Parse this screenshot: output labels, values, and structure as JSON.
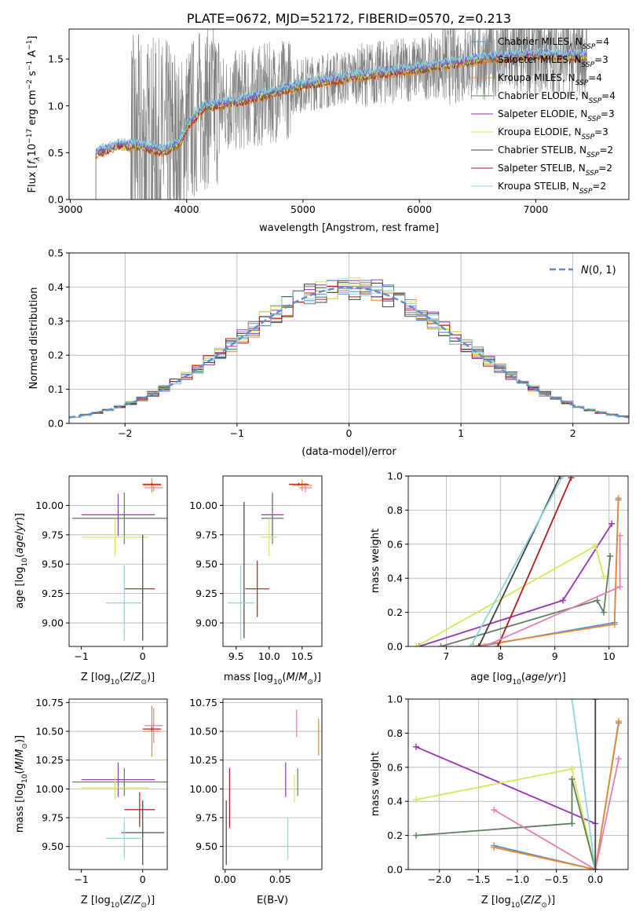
{
  "figure": {
    "title": "PLATE=0672, MJD=52172, FIBERID=0570, z=0.213"
  },
  "colors": {
    "chabrier_miles": "#5b8ed0",
    "salpeter_miles": "#8a8a8a",
    "kroupa_miles": "#e58a2e",
    "chabrier_elodie": "#5e7f5e",
    "salpeter_elodie": "#9932b8",
    "kroupa_elodie": "#d4e85a",
    "chabrier_stelib": "#404040",
    "salpeter_stelib": "#b01c1c",
    "kroupa_stelib": "#8dd6dc",
    "pink": "#e37fb5",
    "data": "#808080",
    "grid": "#b0b0b0"
  },
  "chart_data": [
    {
      "id": "spectrum",
      "type": "line",
      "xlabel": "wavelength [Angstrom, rest frame]",
      "ylabel_parts": [
        "Flux [f",
        "λ",
        "10",
        "−17",
        " erg cm",
        "−2",
        " s",
        "−1",
        " A",
        "−1",
        "]"
      ],
      "xlim": [
        2990,
        7800
      ],
      "ylim": [
        0,
        1.82
      ],
      "xticks": [
        3000,
        4000,
        5000,
        6000,
        7000
      ],
      "yticks": [
        0.0,
        0.5,
        1.0,
        1.5
      ],
      "ytick_labels": [
        "0.0",
        "0.5",
        "1.0",
        "1.5"
      ],
      "legend_placement": "right",
      "legend": [
        {
          "label": "Chabrier MILES, N",
          "sub": "SSP",
          "tail": "=4",
          "color_key": "chabrier_miles"
        },
        {
          "label": "Salpeter MILES, N",
          "sub": "SSP",
          "tail": "=3",
          "color_key": "salpeter_miles"
        },
        {
          "label": "Kroupa MILES, N",
          "sub": "SSP",
          "tail": "=4",
          "color_key": "kroupa_miles"
        },
        {
          "label": "Chabrier ELODIE, N",
          "sub": "SSP",
          "tail": "=4",
          "color_key": "chabrier_elodie"
        },
        {
          "label": "Salpeter ELODIE, N",
          "sub": "SSP",
          "tail": "=3",
          "color_key": "salpeter_elodie"
        },
        {
          "label": "Kroupa ELODIE, N",
          "sub": "SSP",
          "tail": "=3",
          "color_key": "kroupa_elodie"
        },
        {
          "label": "Chabrier STELIB, N",
          "sub": "SSP",
          "tail": "=2",
          "color_key": "chabrier_stelib"
        },
        {
          "label": "Salpeter STELIB, N",
          "sub": "SSP",
          "tail": "=2",
          "color_key": "salpeter_stelib"
        },
        {
          "label": "Kroupa STELIB, N",
          "sub": "SSP",
          "tail": "=2",
          "color_key": "kroupa_stelib"
        }
      ],
      "data_range": [
        3220,
        7440
      ],
      "model_continuum": [
        [
          3220,
          0.5
        ],
        [
          3400,
          0.58
        ],
        [
          3600,
          0.58
        ],
        [
          3800,
          0.52
        ],
        [
          3950,
          0.62
        ],
        [
          4000,
          0.78
        ],
        [
          4150,
          1.0
        ],
        [
          4300,
          1.02
        ],
        [
          4500,
          1.07
        ],
        [
          5000,
          1.23
        ],
        [
          5500,
          1.33
        ],
        [
          6000,
          1.4
        ],
        [
          6500,
          1.5
        ],
        [
          7000,
          1.55
        ],
        [
          7440,
          1.53
        ]
      ]
    },
    {
      "id": "residuals",
      "type": "histogram",
      "xlabel": "(data-model)/error",
      "ylabel": "Normed distribution",
      "xlim": [
        -2.5,
        2.5
      ],
      "ylim": [
        0,
        0.5
      ],
      "xticks": [
        -2,
        -1,
        0,
        1,
        2
      ],
      "xtick_labels": [
        "−2",
        "−1",
        "0",
        "1",
        "2"
      ],
      "yticks": [
        0.0,
        0.1,
        0.2,
        0.3,
        0.4,
        0.5
      ],
      "ytick_labels": [
        "0.0",
        "0.1",
        "0.2",
        "0.3",
        "0.4",
        "0.5"
      ],
      "gaussian_label": "N(0,1)",
      "legend_placement": "top-right",
      "bin_width": 0.1
    },
    {
      "id": "age_vs_Z",
      "type": "errorbar",
      "xlabel": "Z [log10(Z/Z⊙)]",
      "ylabel": "age  [log10(age/yr)]",
      "xlim": [
        -1.2,
        0.4
      ],
      "ylim": [
        8.8,
        10.25
      ],
      "xticks": [
        -1,
        0
      ],
      "xtick_labels": [
        "−1",
        "0"
      ],
      "yticks": [
        9.0,
        9.25,
        9.5,
        9.75,
        10.0
      ],
      "ytick_labels": [
        "9.00",
        "9.25",
        "9.50",
        "9.75",
        "10.00"
      ],
      "points": [
        {
          "c": "salpeter_elodie",
          "x": -0.4,
          "xerr": 0.6,
          "y": 9.92,
          "yerr": 0.18
        },
        {
          "c": "chabrier_elodie",
          "x": -0.3,
          "xerr": 0.85,
          "y": 9.89,
          "yerr": 0.22
        },
        {
          "c": "kroupa_elodie",
          "x": -0.45,
          "xerr": 0.55,
          "y": 9.73,
          "yerr": 0.16
        },
        {
          "c": "chabrier_stelib",
          "x": 0.0,
          "xerr": 0.0,
          "y": 9.3,
          "yerr": 0.45
        },
        {
          "c": "salpeter_stelib",
          "x": -0.05,
          "xerr": 0.25,
          "y": 9.29,
          "yerr": 0.0
        },
        {
          "c": "kroupa_stelib",
          "x": -0.3,
          "xerr": 0.3,
          "y": 9.17,
          "yerr": 0.32
        },
        {
          "c": "kroupa_miles",
          "x": 0.15,
          "xerr": 0.15,
          "y": 10.17,
          "yerr": 0.06
        },
        {
          "c": "pink",
          "x": 0.18,
          "xerr": 0.15,
          "y": 10.15,
          "yerr": 0.03
        },
        {
          "c": "salpeter_stelib",
          "x": 0.15,
          "xerr": 0.15,
          "y": 10.18,
          "yerr": 0.01
        }
      ]
    },
    {
      "id": "age_vs_mass",
      "type": "errorbar",
      "xlabel": "mass [log10(M/M⊙)]",
      "xlim": [
        9.3,
        10.8
      ],
      "ylim": [
        8.8,
        10.25
      ],
      "xticks": [
        9.5,
        10.0,
        10.5
      ],
      "xtick_labels": [
        "9.5",
        "10.0",
        "10.5"
      ],
      "yticks": [
        9.0,
        9.25,
        9.5,
        9.75,
        10.0
      ],
      "ytick_labels": [
        "9.00",
        "9.25",
        "9.50",
        "9.75",
        "10.00"
      ],
      "points": [
        {
          "c": "salpeter_elodie",
          "x": 10.05,
          "xerr": 0.17,
          "y": 9.92,
          "yerr": 0.18
        },
        {
          "c": "chabrier_elodie",
          "x": 10.05,
          "xerr": 0.17,
          "y": 9.89,
          "yerr": 0.22
        },
        {
          "c": "kroupa_elodie",
          "x": 10.0,
          "xerr": 0.13,
          "y": 9.73,
          "yerr": 0.16
        },
        {
          "c": "chabrier_stelib",
          "x": 9.62,
          "xerr": 0.0,
          "y": 9.45,
          "yerr": 0.58
        },
        {
          "c": "salpeter_stelib",
          "x": 9.82,
          "xerr": 0.18,
          "y": 9.29,
          "yerr": 0.24
        },
        {
          "c": "kroupa_stelib",
          "x": 9.57,
          "xerr": 0.2,
          "y": 9.17,
          "yerr": 0.32
        },
        {
          "c": "kroupa_miles",
          "x": 10.5,
          "xerr": 0.15,
          "y": 10.17,
          "yerr": 0.05
        },
        {
          "c": "pink",
          "x": 10.55,
          "xerr": 0.1,
          "y": 10.15,
          "yerr": 0.04
        },
        {
          "c": "salpeter_stelib",
          "x": 10.45,
          "xerr": 0.15,
          "y": 10.18,
          "yerr": 0.01
        }
      ]
    },
    {
      "id": "weight_vs_age",
      "type": "line",
      "xlabel": "age  [log10(age/yr)]",
      "ylabel": "mass weight",
      "xlim": [
        6.3,
        10.35
      ],
      "ylim": [
        0,
        1.0
      ],
      "xticks": [
        7,
        8,
        9,
        10
      ],
      "yticks": [
        0.0,
        0.2,
        0.4,
        0.6,
        0.8,
        1.0
      ],
      "ytick_labels": [
        "0.0",
        "0.2",
        "0.4",
        "0.6",
        "0.8",
        "1.0"
      ],
      "series": [
        {
          "c": "chabrier_miles",
          "x": [
            7.6,
            10.1,
            10.17
          ],
          "y": [
            0.0,
            0.14,
            0.86
          ]
        },
        {
          "c": "kroupa_miles",
          "x": [
            7.5,
            10.1,
            10.17
          ],
          "y": [
            0.0,
            0.13,
            0.87
          ]
        },
        {
          "c": "chabrier_elodie",
          "x": [
            6.9,
            9.78,
            9.9,
            10.02
          ],
          "y": [
            0.0,
            0.27,
            0.2,
            0.53
          ]
        },
        {
          "c": "salpeter_elodie",
          "x": [
            6.5,
            9.15,
            10.05
          ],
          "y": [
            0.0,
            0.27,
            0.72
          ]
        },
        {
          "c": "kroupa_elodie",
          "x": [
            6.45,
            9.75,
            9.9
          ],
          "y": [
            0.0,
            0.59,
            0.41
          ]
        },
        {
          "c": "chabrier_stelib",
          "x": [
            7.6,
            9.1
          ],
          "y": [
            0.0,
            1.0
          ]
        },
        {
          "c": "salpeter_stelib",
          "x": [
            7.95,
            9.3
          ],
          "y": [
            0.0,
            0.99
          ]
        },
        {
          "c": "kroupa_stelib",
          "x": [
            7.45,
            9.15
          ],
          "y": [
            0.0,
            1.0
          ]
        },
        {
          "c": "pink",
          "x": [
            7.7,
            10.2,
            10.2
          ],
          "y": [
            0.0,
            0.35,
            0.65
          ]
        }
      ]
    },
    {
      "id": "mass_vs_Z",
      "type": "errorbar",
      "xlabel": "Z [log10(Z/Z⊙)]",
      "ylabel": "mass [log10(M/M⊙)]",
      "xlim": [
        -1.2,
        0.4
      ],
      "ylim": [
        9.3,
        10.78
      ],
      "xticks": [
        -1,
        0
      ],
      "xtick_labels": [
        "−1",
        "0"
      ],
      "yticks": [
        9.5,
        9.75,
        10.0,
        10.25,
        10.5,
        10.75
      ],
      "ytick_labels": [
        "9.50",
        "9.75",
        "10.00",
        "10.25",
        "10.50",
        "10.75"
      ],
      "points": [
        {
          "c": "salpeter_elodie",
          "x": -0.4,
          "xerr": 0.6,
          "y": 10.08,
          "yerr": 0.15
        },
        {
          "c": "chabrier_elodie",
          "x": -0.3,
          "xerr": 0.85,
          "y": 10.06,
          "yerr": 0.12
        },
        {
          "c": "kroupa_elodie",
          "x": -0.45,
          "xerr": 0.55,
          "y": 10.01,
          "yerr": 0.1
        },
        {
          "c": "salpeter_stelib",
          "x": -0.05,
          "xerr": 0.25,
          "y": 9.82,
          "yerr": 0.15
        },
        {
          "c": "chabrier_stelib",
          "x": 0.0,
          "xerr": 0.35,
          "y": 9.62,
          "yerr": 0.28
        },
        {
          "c": "kroupa_stelib",
          "x": -0.3,
          "xerr": 0.3,
          "y": 9.57,
          "yerr": 0.18
        },
        {
          "c": "kroupa_miles",
          "x": 0.15,
          "xerr": 0.15,
          "y": 10.5,
          "yerr": 0.22
        },
        {
          "c": "pink",
          "x": 0.18,
          "xerr": 0.15,
          "y": 10.55,
          "yerr": 0.15
        },
        {
          "c": "salpeter_stelib",
          "x": 0.15,
          "xerr": 0.15,
          "y": 10.52,
          "yerr": 0.02
        }
      ]
    },
    {
      "id": "mass_vs_ebv",
      "type": "errorbar",
      "xlabel": "E(B-V)",
      "xlim": [
        -0.002,
        0.088
      ],
      "ylim": [
        9.3,
        10.78
      ],
      "xticks": [
        0.0,
        0.05
      ],
      "xtick_labels": [
        "0.00",
        "0.05"
      ],
      "yticks": [
        9.5,
        9.75,
        10.0,
        10.25,
        10.5,
        10.75
      ],
      "ytick_labels": [
        "9.50",
        "9.75",
        "10.00",
        "10.25",
        "10.50",
        "10.75"
      ],
      "points": [
        {
          "c": "salpeter_stelib",
          "x": 0.004,
          "xerr": 0.0,
          "y": 9.92,
          "yerr": 0.26
        },
        {
          "c": "chabrier_stelib",
          "x": 0.001,
          "xerr": 0.0,
          "y": 9.62,
          "yerr": 0.28
        },
        {
          "c": "salpeter_elodie",
          "x": 0.055,
          "xerr": 0.0,
          "y": 10.08,
          "yerr": 0.15
        },
        {
          "c": "kroupa_stelib",
          "x": 0.057,
          "xerr": 0.0,
          "y": 9.57,
          "yerr": 0.18
        },
        {
          "c": "kroupa_elodie",
          "x": 0.063,
          "xerr": 0.0,
          "y": 10.0,
          "yerr": 0.12
        },
        {
          "c": "chabrier_elodie",
          "x": 0.066,
          "xerr": 0.0,
          "y": 10.06,
          "yerr": 0.12
        },
        {
          "c": "pink",
          "x": 0.065,
          "xerr": 0.0,
          "y": 10.57,
          "yerr": 0.12
        },
        {
          "c": "kroupa_miles",
          "x": 0.085,
          "xerr": 0.0,
          "y": 10.45,
          "yerr": 0.16
        }
      ]
    },
    {
      "id": "weight_vs_Z",
      "type": "line",
      "xlabel": "Z [log10(Z/Z⊙)]",
      "ylabel": "mass weight",
      "xlim": [
        -2.4,
        0.42
      ],
      "ylim": [
        0,
        1.0
      ],
      "xticks": [
        -2.0,
        -1.5,
        -1.0,
        -0.5,
        0.0
      ],
      "xtick_labels": [
        "−2.0",
        "−1.5",
        "−1.0",
        "−0.5",
        "0.0"
      ],
      "yticks": [
        0.0,
        0.2,
        0.4,
        0.6,
        0.8,
        1.0
      ],
      "ytick_labels": [
        "0.0",
        "0.2",
        "0.4",
        "0.6",
        "0.8",
        "1.0"
      ],
      "series": [
        {
          "c": "salpeter_elodie",
          "x": [
            -2.3,
            0.0
          ],
          "y": [
            0.72,
            0.27
          ]
        },
        {
          "c": "kroupa_elodie",
          "x": [
            -2.3,
            -0.3,
            0.0
          ],
          "y": [
            0.41,
            0.59,
            0.0
          ]
        },
        {
          "c": "chabrier_elodie",
          "x": [
            -2.3,
            -0.3,
            -0.3,
            0.0
          ],
          "y": [
            0.2,
            0.27,
            0.53,
            0.0
          ]
        },
        {
          "c": "chabrier_miles",
          "x": [
            -1.3,
            0.0,
            0.3
          ],
          "y": [
            0.14,
            0.0,
            0.86
          ]
        },
        {
          "c": "kroupa_miles",
          "x": [
            -1.3,
            0.0,
            0.3
          ],
          "y": [
            0.13,
            0.0,
            0.87
          ]
        },
        {
          "c": "pink",
          "x": [
            -1.3,
            0.0,
            0.3
          ],
          "y": [
            0.35,
            0.0,
            0.65
          ]
        },
        {
          "c": "kroupa_stelib",
          "x": [
            -0.3,
            0.0
          ],
          "y": [
            1.0,
            0.0
          ]
        },
        {
          "c": "chabrier_stelib",
          "x": [
            0.0,
            0.0
          ],
          "y": [
            1.0,
            0.0
          ]
        }
      ]
    }
  ]
}
